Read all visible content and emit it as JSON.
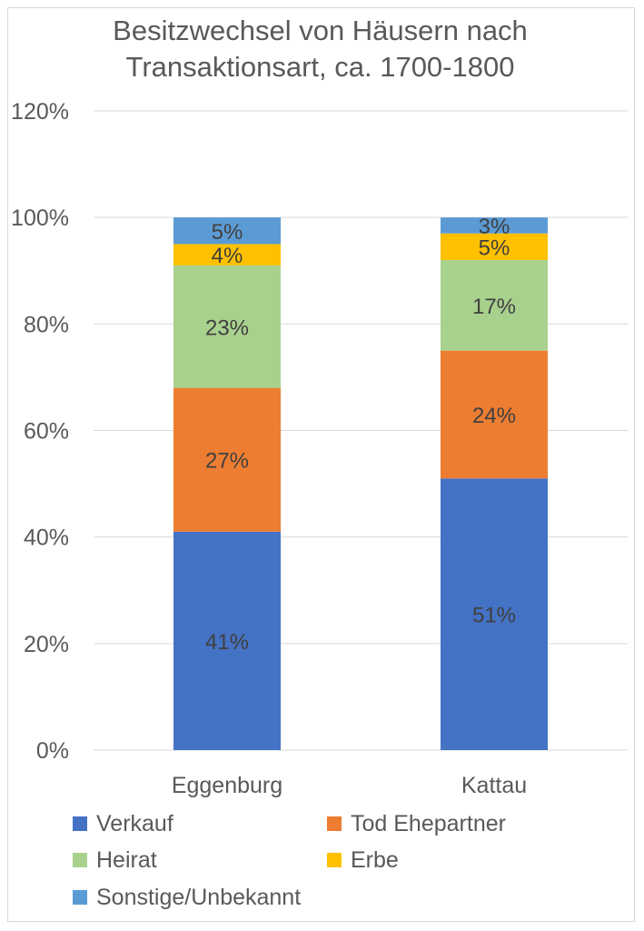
{
  "chart_data": {
    "type": "bar",
    "stacked": true,
    "title": [
      "Besitzwechsel von Häusern nach",
      "Transaktionsart, ca. 1700-1800"
    ],
    "categories": [
      "Eggenburg",
      "Kattau"
    ],
    "series": [
      {
        "name": "Verkauf",
        "color": "#4472C4",
        "values": [
          41,
          51
        ],
        "labels": [
          "41%",
          "51%"
        ]
      },
      {
        "name": "Tod Ehepartner",
        "color": "#ED7D31",
        "values": [
          27,
          24
        ],
        "labels": [
          "27%",
          "24%"
        ]
      },
      {
        "name": "Heirat",
        "color": "#A9D18E",
        "values": [
          23,
          17
        ],
        "labels": [
          "23%",
          "17%"
        ]
      },
      {
        "name": "Erbe",
        "color": "#FFC000",
        "values": [
          4,
          5
        ],
        "labels": [
          "4%",
          "5%"
        ]
      },
      {
        "name": "Sonstige/Unbekannt",
        "color": "#5B9BD5",
        "values": [
          5,
          3
        ],
        "labels": [
          "5%",
          "3%"
        ]
      }
    ],
    "ylim": [
      0,
      120
    ],
    "yticks": [
      0,
      20,
      40,
      60,
      80,
      100,
      120
    ],
    "ytick_labels": [
      "0%",
      "20%",
      "40%",
      "60%",
      "80%",
      "100%",
      "120%"
    ],
    "grid": true,
    "legend": "bottom",
    "xlabel": "",
    "ylabel": ""
  }
}
